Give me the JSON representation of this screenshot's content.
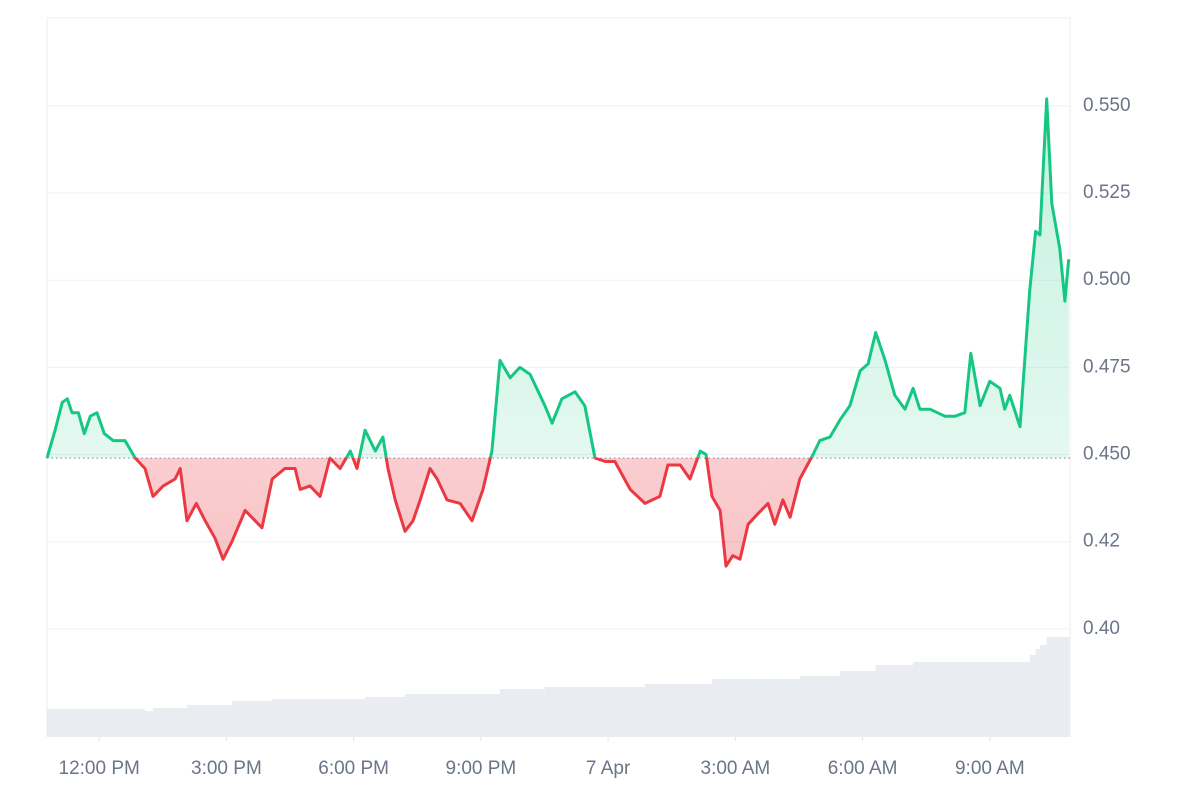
{
  "chart_data": {
    "type": "baseline-line",
    "x": [
      10.77,
      10.96,
      11.13,
      11.25,
      11.36,
      11.51,
      11.65,
      11.79,
      11.95,
      12.12,
      12.33,
      12.61,
      12.85,
      13.08,
      13.27,
      13.51,
      13.79,
      13.91,
      14.07,
      14.29,
      14.5,
      14.73,
      14.92,
      15.13,
      15.44,
      15.84,
      16.08,
      16.38,
      16.62,
      16.74,
      16.97,
      17.21,
      17.44,
      17.68,
      17.92,
      18.08,
      18.27,
      18.51,
      18.69,
      18.81,
      18.98,
      19.21,
      19.4,
      19.57,
      19.8,
      19.97,
      20.2,
      20.51,
      20.79,
      21.05,
      21.26,
      21.45,
      21.69,
      21.92,
      22.16,
      22.51,
      22.68,
      22.91,
      23.22,
      23.45,
      23.69,
      23.93,
      24.16,
      24.52,
      24.87,
      25.22,
      25.41,
      25.7,
      25.93,
      26.17,
      26.31,
      26.45,
      26.64,
      26.78,
      26.94,
      27.11,
      27.3,
      27.53,
      27.77,
      27.93,
      28.12,
      28.29,
      28.52,
      28.83,
      28.99,
      29.23,
      29.47,
      29.7,
      29.94,
      30.13,
      30.31,
      30.53,
      30.76,
      31.0,
      31.19,
      31.35,
      31.59,
      31.94,
      32.18,
      32.41,
      32.55,
      32.77,
      33.0,
      33.24,
      33.35,
      33.47,
      33.71,
      33.94,
      34.08,
      34.18,
      34.34,
      34.46,
      34.65,
      34.77,
      34.86
    ],
    "values": [
      0.449,
      0.457,
      0.465,
      0.466,
      0.462,
      0.462,
      0.456,
      0.461,
      0.462,
      0.456,
      0.454,
      0.454,
      0.449,
      0.446,
      0.438,
      0.441,
      0.443,
      0.446,
      0.431,
      0.436,
      0.431,
      0.426,
      0.42,
      0.425,
      0.434,
      0.429,
      0.443,
      0.446,
      0.446,
      0.44,
      0.441,
      0.438,
      0.449,
      0.446,
      0.451,
      0.446,
      0.457,
      0.451,
      0.455,
      0.446,
      0.437,
      0.428,
      0.431,
      0.437,
      0.446,
      0.443,
      0.437,
      0.436,
      0.431,
      0.44,
      0.451,
      0.477,
      0.472,
      0.475,
      0.473,
      0.464,
      0.459,
      0.466,
      0.468,
      0.464,
      0.449,
      0.448,
      0.448,
      0.44,
      0.436,
      0.438,
      0.447,
      0.447,
      0.443,
      0.451,
      0.45,
      0.438,
      0.434,
      0.418,
      0.421,
      0.42,
      0.43,
      0.433,
      0.436,
      0.43,
      0.437,
      0.432,
      0.443,
      0.45,
      0.454,
      0.455,
      0.46,
      0.464,
      0.474,
      0.476,
      0.485,
      0.477,
      0.467,
      0.463,
      0.469,
      0.463,
      0.463,
      0.461,
      0.461,
      0.462,
      0.479,
      0.464,
      0.471,
      0.469,
      0.463,
      0.467,
      0.458,
      0.497,
      0.514,
      0.513,
      0.552,
      0.522,
      0.509,
      0.494,
      0.506
    ],
    "volume": [
      28,
      28,
      28,
      28,
      28,
      28,
      28,
      28,
      28,
      28,
      28,
      28,
      28,
      26,
      29,
      29,
      29,
      29,
      32,
      32,
      32,
      32,
      32,
      36,
      36,
      36,
      38,
      38,
      38,
      38,
      38,
      38,
      38,
      38,
      38,
      38,
      40,
      40,
      40,
      40,
      40,
      43,
      43,
      43,
      43,
      43,
      43,
      43,
      43,
      43,
      43,
      48,
      48,
      48,
      48,
      50,
      50,
      50,
      50,
      50,
      50,
      50,
      50,
      50,
      53,
      53,
      53,
      53,
      53,
      53,
      53,
      58,
      58,
      58,
      58,
      58,
      58,
      58,
      58,
      58,
      58,
      58,
      61,
      61,
      61,
      61,
      66,
      66,
      66,
      66,
      72,
      72,
      72,
      72,
      75,
      75,
      75,
      75,
      75,
      75,
      75,
      75,
      75,
      75,
      75,
      75,
      75,
      82,
      88,
      92,
      100,
      100,
      100,
      100,
      100
    ],
    "baseline": 0.449,
    "up_color": "#16c784",
    "down_color": "#ea3943",
    "volume_color": "#e9ecf1",
    "xlim": [
      10.77,
      34.89
    ],
    "xticks": [
      {
        "value": 12,
        "label": "12:00 PM"
      },
      {
        "value": 15,
        "label": "3:00 PM"
      },
      {
        "value": 18,
        "label": "6:00 PM"
      },
      {
        "value": 21,
        "label": "9:00 PM"
      },
      {
        "value": 24,
        "label": "7 Apr"
      },
      {
        "value": 27,
        "label": "3:00 AM"
      },
      {
        "value": 30,
        "label": "6:00 AM"
      },
      {
        "value": 33,
        "label": "9:00 AM"
      }
    ],
    "ylim": [
      0.369,
      0.5752
    ],
    "yticks": [
      {
        "value": 0.4,
        "label": "0.40"
      },
      {
        "value": 0.425,
        "label": "0.42"
      },
      {
        "value": 0.45,
        "label": "0.450"
      },
      {
        "value": 0.475,
        "label": "0.475"
      },
      {
        "value": 0.5,
        "label": "0.500"
      },
      {
        "value": 0.525,
        "label": "0.525"
      },
      {
        "value": 0.55,
        "label": "0.550"
      }
    ],
    "grid": true
  }
}
